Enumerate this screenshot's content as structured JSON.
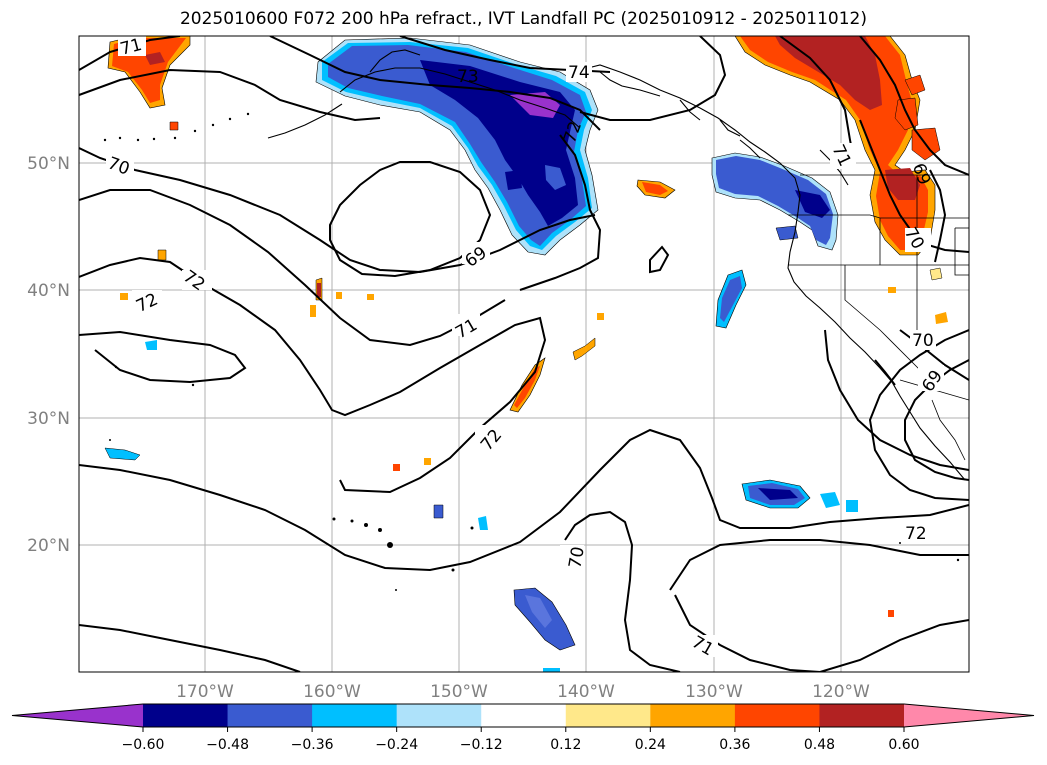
{
  "title": "2025010600 F072 200 hPa refract., IVT Landfall PC (2025010912 - 2025011012)",
  "map": {
    "lon_ticks": [
      "170°W",
      "160°W",
      "150°W",
      "140°W",
      "130°W",
      "120°W"
    ],
    "lat_ticks": [
      "50°N",
      "40°N",
      "30°N",
      "20°N"
    ],
    "contour_labels": [
      "71",
      "74",
      "73",
      "72",
      "70",
      "72",
      "69",
      "71",
      "72",
      "70",
      "71",
      "69",
      "70",
      "71",
      "72",
      "70",
      "69"
    ],
    "colors": {
      "purple": "#9932cc",
      "navy": "#00008b",
      "blue": "#3a5bd0",
      "cyan": "#00bfff",
      "lightblue": "#aee2fa",
      "yellow": "#ffe88a",
      "orange": "#ffa500",
      "redorange": "#ff4500",
      "darkred": "#b22222",
      "pink": "#ff88aa"
    }
  },
  "colorbar": {
    "ticks": [
      "−0.60",
      "−0.48",
      "−0.36",
      "−0.24",
      "−0.12",
      "0.12",
      "0.24",
      "0.36",
      "0.48",
      "0.60"
    ],
    "colors": [
      "#9932cc",
      "#00008b",
      "#3a5bd0",
      "#00bfff",
      "#aee2fa",
      "#ffffff",
      "#ffe88a",
      "#ffa500",
      "#ff4500",
      "#b22222",
      "#ff88aa"
    ]
  }
}
